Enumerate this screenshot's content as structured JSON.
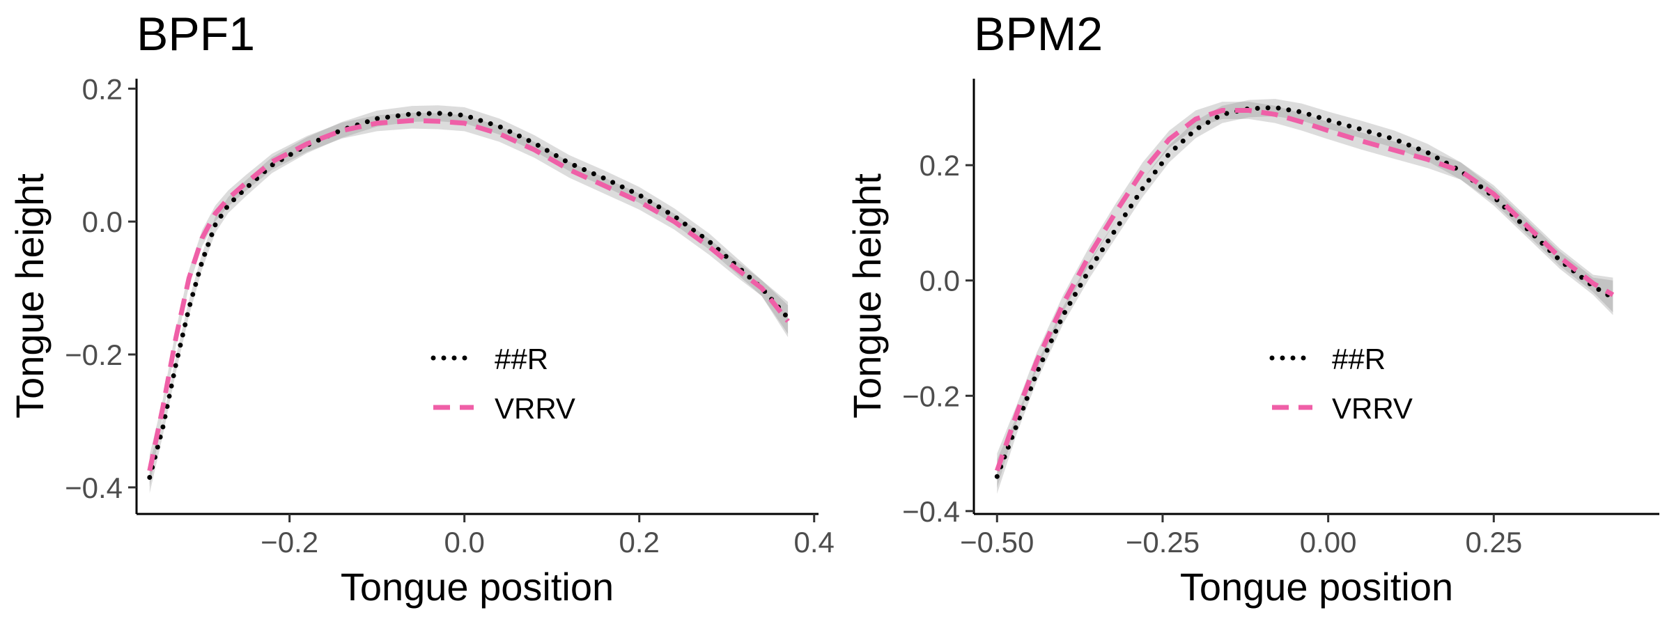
{
  "chart_data": [
    {
      "type": "line",
      "title": "BPF1",
      "xlabel": "Tongue position",
      "ylabel": "Tongue height",
      "xlim": [
        -0.375,
        0.405
      ],
      "ylim": [
        -0.44,
        0.215
      ],
      "xticks": [
        -0.2,
        0.0,
        0.2,
        0.4
      ],
      "xtick_labels": [
        "−0.2",
        "0.0",
        "0.2",
        "0.4"
      ],
      "yticks": [
        -0.4,
        -0.2,
        0.0,
        0.2
      ],
      "ytick_labels": [
        "−0.4",
        "−0.2",
        "0.0",
        "0.2"
      ],
      "legend": [
        "##R",
        "VRRV"
      ],
      "grid": false,
      "series": [
        {
          "name": "##R",
          "style": "dotted",
          "color": "#000000",
          "ci": 0.012,
          "x": [
            -0.36,
            -0.345,
            -0.33,
            -0.315,
            -0.3,
            -0.285,
            -0.27,
            -0.25,
            -0.22,
            -0.18,
            -0.14,
            -0.1,
            -0.06,
            -0.03,
            0.0,
            0.04,
            0.08,
            0.12,
            0.16,
            0.2,
            0.24,
            0.28,
            0.31,
            0.34,
            0.37
          ],
          "y": [
            -0.385,
            -0.31,
            -0.215,
            -0.13,
            -0.06,
            -0.005,
            0.025,
            0.05,
            0.085,
            0.115,
            0.138,
            0.155,
            0.162,
            0.163,
            0.16,
            0.143,
            0.118,
            0.088,
            0.065,
            0.04,
            0.008,
            -0.03,
            -0.065,
            -0.1,
            -0.145
          ]
        },
        {
          "name": "VRRV",
          "style": "dashed",
          "color": "#ef5fa7",
          "ci": 0.012,
          "x": [
            -0.36,
            -0.345,
            -0.33,
            -0.315,
            -0.3,
            -0.285,
            -0.27,
            -0.25,
            -0.22,
            -0.18,
            -0.14,
            -0.1,
            -0.06,
            -0.03,
            0.0,
            0.04,
            0.08,
            0.12,
            0.16,
            0.2,
            0.24,
            0.28,
            0.31,
            0.34,
            0.37
          ],
          "y": [
            -0.375,
            -0.28,
            -0.175,
            -0.085,
            -0.025,
            0.012,
            0.035,
            0.058,
            0.09,
            0.117,
            0.137,
            0.148,
            0.152,
            0.151,
            0.148,
            0.132,
            0.108,
            0.078,
            0.054,
            0.03,
            0.0,
            -0.038,
            -0.07,
            -0.1,
            -0.15
          ]
        }
      ]
    },
    {
      "type": "line",
      "title": "BPM2",
      "xlabel": "Tongue position",
      "ylabel": "Tongue height",
      "xlim": [
        -0.535,
        0.5
      ],
      "ylim": [
        -0.405,
        0.35
      ],
      "xticks": [
        -0.5,
        -0.25,
        0.0,
        0.25
      ],
      "xtick_labels": [
        "−0.50",
        "−0.25",
        "0.00",
        "0.25"
      ],
      "yticks": [
        -0.4,
        -0.2,
        0.0,
        0.2
      ],
      "ytick_labels": [
        "−0.4",
        "−0.2",
        "0.0",
        "0.2"
      ],
      "legend": [
        "##R",
        "VRRV"
      ],
      "grid": false,
      "series": [
        {
          "name": "##R",
          "style": "dotted",
          "color": "#000000",
          "ci": 0.015,
          "x": [
            -0.5,
            -0.47,
            -0.44,
            -0.4,
            -0.36,
            -0.32,
            -0.28,
            -0.24,
            -0.2,
            -0.16,
            -0.12,
            -0.08,
            -0.04,
            0.0,
            0.05,
            0.1,
            0.15,
            0.2,
            0.25,
            0.3,
            0.35,
            0.4,
            0.43
          ],
          "y": [
            -0.34,
            -0.25,
            -0.16,
            -0.06,
            0.02,
            0.09,
            0.16,
            0.22,
            0.262,
            0.288,
            0.298,
            0.3,
            0.292,
            0.278,
            0.262,
            0.245,
            0.222,
            0.19,
            0.145,
            0.09,
            0.035,
            -0.01,
            -0.03
          ]
        },
        {
          "name": "VRRV",
          "style": "dashed",
          "color": "#ef5fa7",
          "ci": 0.015,
          "x": [
            -0.5,
            -0.47,
            -0.44,
            -0.4,
            -0.36,
            -0.32,
            -0.28,
            -0.24,
            -0.2,
            -0.16,
            -0.12,
            -0.08,
            -0.04,
            0.0,
            0.05,
            0.1,
            0.15,
            0.2,
            0.25,
            0.3,
            0.35,
            0.4,
            0.43
          ],
          "y": [
            -0.33,
            -0.23,
            -0.14,
            -0.04,
            0.045,
            0.12,
            0.19,
            0.245,
            0.28,
            0.295,
            0.295,
            0.288,
            0.275,
            0.26,
            0.242,
            0.226,
            0.21,
            0.19,
            0.15,
            0.095,
            0.04,
            -0.005,
            -0.025
          ]
        }
      ]
    }
  ]
}
